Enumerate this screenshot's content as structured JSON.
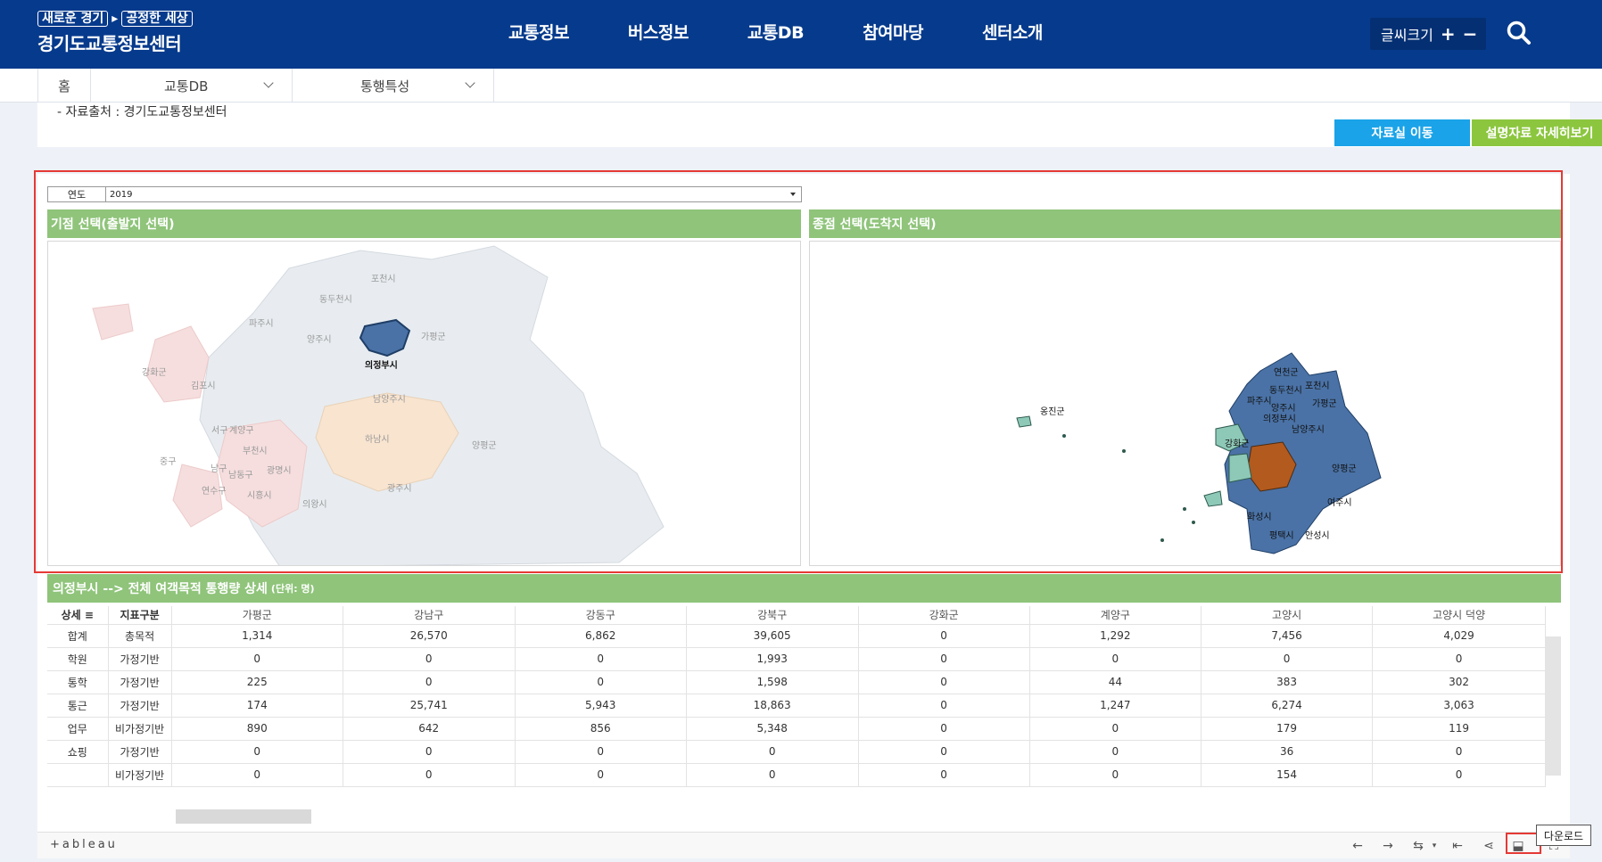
{
  "header": {
    "slogan": [
      "새로운 경기",
      "공정한 세상"
    ],
    "site_name": "경기도교통정보센터",
    "nav": [
      "교통정보",
      "버스정보",
      "교통DB",
      "참여마당",
      "센터소개"
    ],
    "font_size_label": "글씨크기",
    "font_plus": "+",
    "font_minus": "−",
    "search_icon": "search-icon"
  },
  "breadcrumb": [
    "홈",
    "교통DB",
    "통행특성"
  ],
  "content": {
    "source": "-  자료출처 : 경기도교통정보센터",
    "btn_archive": "자료실 이동",
    "btn_detail": "설명자료 자세히보기"
  },
  "filters": {
    "year_label": "연도",
    "year_value": "2019"
  },
  "panels": {
    "origin_title": "기점 선택(출발지 선택)",
    "dest_title": "종점 선택(도착지 선택)"
  },
  "origin_map": {
    "selected_color": "#4a72a6",
    "region_labels": [
      {
        "name": "포천시",
        "selected": false
      },
      {
        "name": "동두천시",
        "selected": false
      },
      {
        "name": "파주시",
        "selected": false
      },
      {
        "name": "양주시",
        "selected": false
      },
      {
        "name": "가평군",
        "selected": false
      },
      {
        "name": "의정부시",
        "selected": true
      },
      {
        "name": "강화군",
        "selected": false
      },
      {
        "name": "김포시",
        "selected": false
      },
      {
        "name": "남양주시",
        "selected": false
      },
      {
        "name": "서구",
        "selected": false
      },
      {
        "name": "계양구",
        "selected": false
      },
      {
        "name": "부천시",
        "selected": false
      },
      {
        "name": "하남시",
        "selected": false
      },
      {
        "name": "양평군",
        "selected": false
      },
      {
        "name": "중구",
        "selected": false
      },
      {
        "name": "남구",
        "selected": false
      },
      {
        "name": "남동구",
        "selected": false
      },
      {
        "name": "광명시",
        "selected": false
      },
      {
        "name": "연수구",
        "selected": false
      },
      {
        "name": "시흥시",
        "selected": false
      },
      {
        "name": "의왕시",
        "selected": false
      },
      {
        "name": "광주시",
        "selected": false
      }
    ]
  },
  "dest_map": {
    "region_labels": [
      "연천군",
      "동두천시",
      "포천시",
      "파주시",
      "가평군",
      "양주시",
      "의정부시",
      "남양주시",
      "양평군",
      "여주시",
      "옹진군",
      "강화군",
      "평택시",
      "안성시",
      "화성시"
    ]
  },
  "table": {
    "title": "의정부시 --> 전체 여객목적 통행량 상세",
    "unit": "(단위: 명)",
    "col_detail": "상세",
    "col_indicator": "지표구분",
    "columns": [
      "가평군",
      "강남구",
      "강동구",
      "강북구",
      "강화군",
      "계양구",
      "고양시",
      "고양시 덕양"
    ],
    "rows": [
      {
        "purpose": "합계",
        "type": "총목적",
        "values": [
          "1,314",
          "26,570",
          "6,862",
          "39,605",
          "0",
          "1,292",
          "7,456",
          "4,029"
        ]
      },
      {
        "purpose": "학원",
        "type": "가정기반",
        "values": [
          "0",
          "0",
          "0",
          "1,993",
          "0",
          "0",
          "0",
          "0"
        ]
      },
      {
        "purpose": "통학",
        "type": "가정기반",
        "values": [
          "225",
          "0",
          "0",
          "1,598",
          "0",
          "44",
          "383",
          "302"
        ]
      },
      {
        "purpose": "통근",
        "type": "가정기반",
        "values": [
          "174",
          "25,741",
          "5,943",
          "18,863",
          "0",
          "1,247",
          "6,274",
          "3,063"
        ]
      },
      {
        "purpose": "업무",
        "type": "비가정기반",
        "values": [
          "890",
          "642",
          "856",
          "5,348",
          "0",
          "0",
          "179",
          "119"
        ]
      },
      {
        "purpose": "쇼핑",
        "type": "가정기반",
        "values": [
          "0",
          "0",
          "0",
          "0",
          "0",
          "0",
          "36",
          "0"
        ]
      },
      {
        "purpose": "",
        "type": "비가정기반",
        "values": [
          "0",
          "0",
          "0",
          "0",
          "0",
          "0",
          "154",
          "0"
        ]
      }
    ]
  },
  "toolbar": {
    "brand": "+ableau",
    "download_tooltip": "다운로드"
  }
}
